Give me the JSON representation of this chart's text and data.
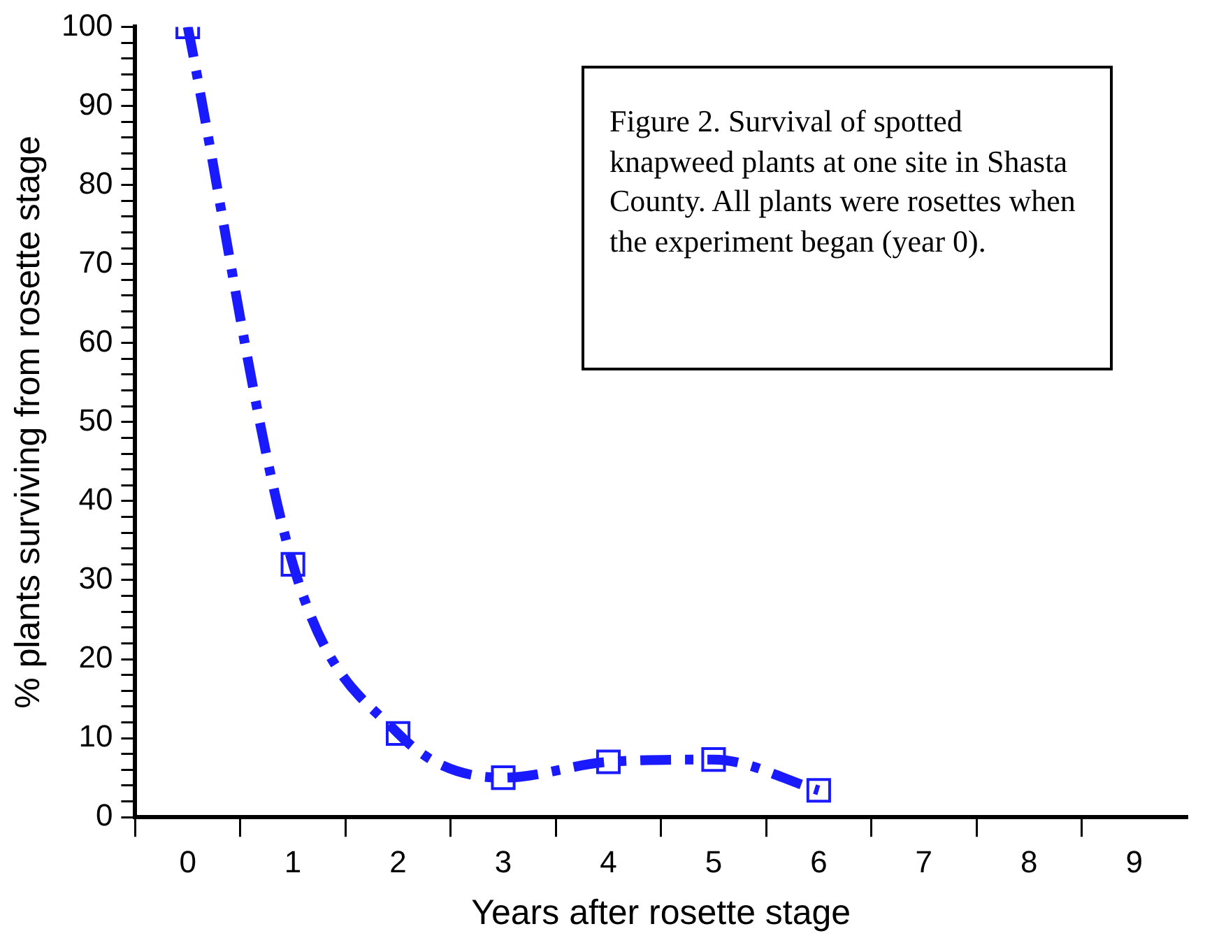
{
  "chart_data": {
    "type": "line",
    "xlabel": "Years after rosette stage",
    "ylabel": "% plants surviving from rosette stage",
    "annotations": [
      "Figure 2.  Survival of spotted knapweed plants at one site in Shasta County. All plants were rosettes when the experiment began (year 0)."
    ],
    "x": [
      0,
      1,
      2,
      3,
      4,
      5,
      6
    ],
    "series": [
      {
        "color": "#1a1aff",
        "values": [
          100,
          32,
          10.6,
          5,
          7,
          7.3,
          3.4
        ]
      }
    ],
    "xlim": [
      -0.5,
      9.5
    ],
    "xticks": [
      {
        "value": -0.5,
        "label": null
      },
      0,
      {
        "value": 0.5,
        "label": null
      },
      1,
      {
        "value": 1.5,
        "label": null
      },
      2,
      {
        "value": 2.5,
        "label": null
      },
      3,
      {
        "value": 3.5,
        "label": null
      },
      4,
      {
        "value": 4.5,
        "label": null
      },
      5,
      {
        "value": 5.5,
        "label": null
      },
      6,
      {
        "value": 6.5,
        "label": null
      },
      7,
      {
        "value": 7.5,
        "label": null
      },
      8,
      {
        "value": 8.5,
        "label": null
      },
      9
    ],
    "ylim": [
      0,
      100
    ],
    "yticks": [
      0,
      {
        "value": 2,
        "label": null
      },
      {
        "value": 4,
        "label": null
      },
      {
        "value": 6,
        "label": null
      },
      {
        "value": 8,
        "label": null
      },
      10,
      {
        "value": 12,
        "label": null
      },
      {
        "value": 14,
        "label": null
      },
      {
        "value": 16,
        "label": null
      },
      {
        "value": 18,
        "label": null
      },
      20,
      {
        "value": 22,
        "label": null
      },
      {
        "value": 24,
        "label": null
      },
      {
        "value": 26,
        "label": null
      },
      {
        "value": 28,
        "label": null
      },
      30,
      {
        "value": 32,
        "label": null
      },
      {
        "value": 34,
        "label": null
      },
      {
        "value": 36,
        "label": null
      },
      {
        "value": 38,
        "label": null
      },
      40,
      {
        "value": 42,
        "label": null
      },
      {
        "value": 44,
        "label": null
      },
      {
        "value": 46,
        "label": null
      },
      {
        "value": 48,
        "label": null
      },
      50,
      {
        "value": 52,
        "label": null
      },
      {
        "value": 54,
        "label": null
      },
      {
        "value": 56,
        "label": null
      },
      {
        "value": 58,
        "label": null
      },
      60,
      {
        "value": 62,
        "label": null
      },
      {
        "value": 64,
        "label": null
      },
      {
        "value": 66,
        "label": null
      },
      {
        "value": 68,
        "label": null
      },
      70,
      {
        "value": 72,
        "label": null
      },
      {
        "value": 74,
        "label": null
      },
      {
        "value": 76,
        "label": null
      },
      {
        "value": 78,
        "label": null
      },
      80,
      {
        "value": 82,
        "label": null
      },
      {
        "value": 84,
        "label": null
      },
      {
        "value": 86,
        "label": null
      },
      {
        "value": 88,
        "label": null
      },
      90,
      {
        "value": 92,
        "label": null
      },
      {
        "value": 94,
        "label": null
      },
      {
        "value": 96,
        "label": null
      },
      {
        "value": 98,
        "label": null
      },
      100
    ],
    "grid": false,
    "legend": false,
    "marker": "square",
    "line_style": "dashed"
  }
}
